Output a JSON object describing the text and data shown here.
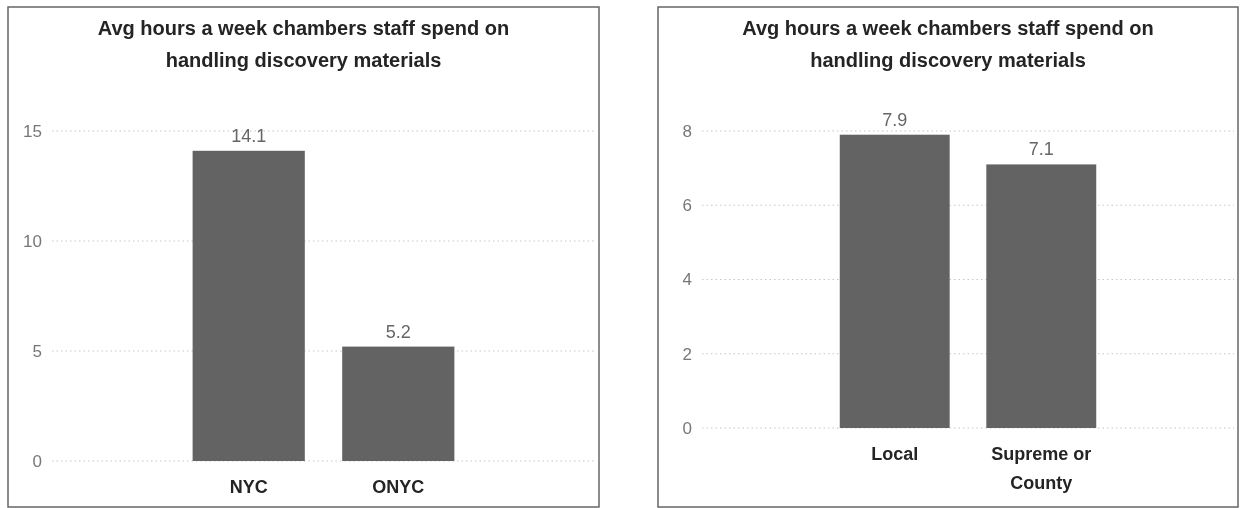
{
  "chart_data": [
    {
      "type": "bar",
      "title": "Avg hours a week chambers staff spend on handling discovery materials",
      "categories": [
        "NYC",
        "ONYC"
      ],
      "values": [
        14.1,
        5.2
      ],
      "color": "#636363",
      "ylim": [
        0,
        15
      ],
      "yticks": [
        0,
        5,
        10,
        15
      ],
      "grid": "y",
      "data_labels": true
    },
    {
      "type": "bar",
      "title": "Avg hours a week chambers staff spend on handling discovery materials",
      "categories": [
        "Local",
        "Supreme or County"
      ],
      "values": [
        7.9,
        7.1
      ],
      "color": "#636363",
      "ylim": [
        0,
        8
      ],
      "yticks": [
        0,
        2,
        4,
        6,
        8
      ],
      "grid": "y",
      "data_labels": true
    }
  ]
}
